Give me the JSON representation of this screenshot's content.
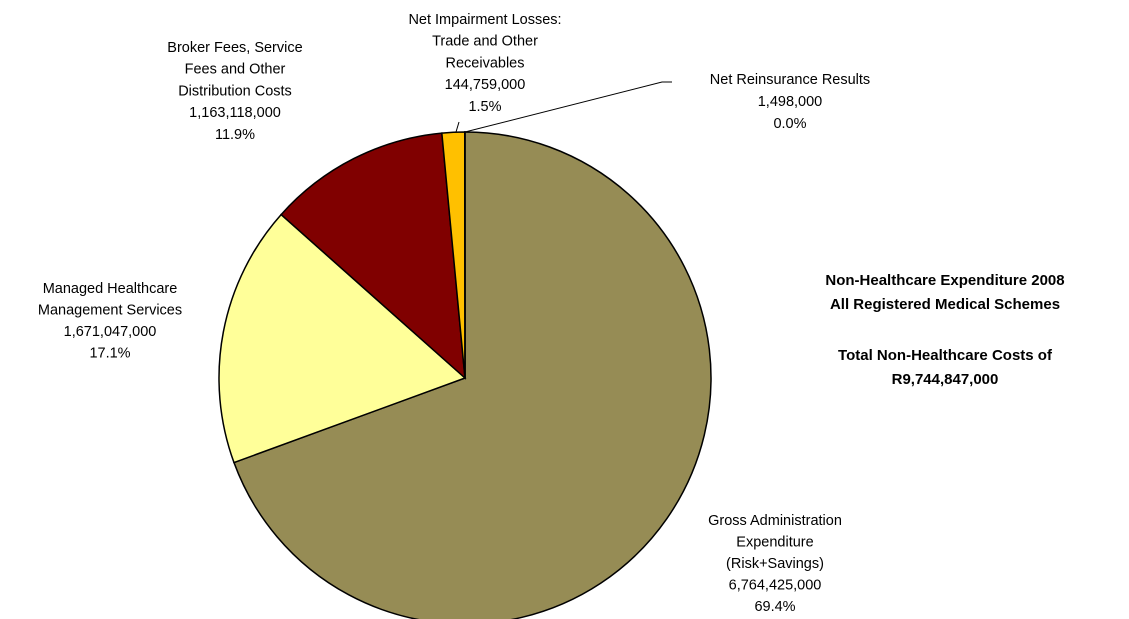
{
  "chart_data": {
    "type": "pie",
    "title": "Non-Healthcare Expenditure 2008",
    "subtitle": "All Registered Medical Schemes",
    "annotations": [
      "Total Non-Healthcare Costs of",
      "R9,744,847,000"
    ],
    "categories": [
      [
        "Gross Administration",
        "Expenditure",
        "(Risk+Savings)"
      ],
      [
        "Managed Healthcare",
        "Management Services"
      ],
      [
        "Broker Fees, Service",
        "Fees and Other",
        "Distribution Costs"
      ],
      [
        "Net Impairment Losses:",
        "Trade and Other",
        "Receivables"
      ],
      [
        "Net Reinsurance Results"
      ]
    ],
    "values": [
      6764425000,
      1671047000,
      1163118000,
      144759000,
      1498000
    ],
    "value_labels": [
      "6,764,425,000",
      "1,671,047,000",
      "1,163,118,000",
      "144,759,000",
      "1,498,000"
    ],
    "percentages": [
      69.4,
      17.1,
      11.9,
      1.5,
      0.0
    ],
    "percentage_labels": [
      "69.4%",
      "17.1%",
      "11.9%",
      "1.5%",
      "0.0%"
    ],
    "colors": [
      "#968c55",
      "#ffff99",
      "#800000",
      "#ffc000",
      "#ffffff"
    ]
  }
}
